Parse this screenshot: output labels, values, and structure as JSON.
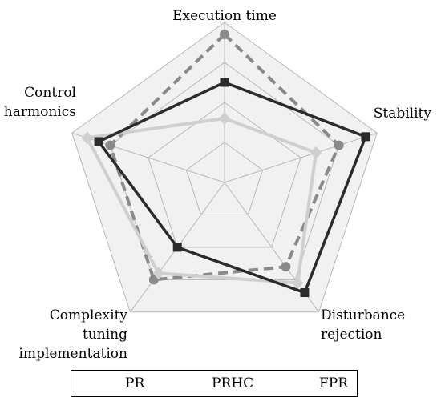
{
  "chart_data": {
    "type": "radar",
    "axes": [
      {
        "label": "Execution time"
      },
      {
        "label": "Stability"
      },
      {
        "label": "Disturbance rejection"
      },
      {
        "label": "Complexity tuning implementation"
      },
      {
        "label": "Control harmonics"
      }
    ],
    "axis_label_lines": [
      [
        "Execution time"
      ],
      [
        "Stability"
      ],
      [
        "Disturbance",
        "rejection"
      ],
      [
        "Complexity",
        "tuning",
        "implementation"
      ],
      [
        "Control",
        "harmonics"
      ]
    ],
    "rlim": [
      0,
      4
    ],
    "rings": 4,
    "grid": true,
    "legend_position": "bottom",
    "series": [
      {
        "name": "PR",
        "values": [
          3.7,
          3.0,
          2.6,
          3.0,
          3.0
        ],
        "color": "#8a8a8a",
        "style": "dashed",
        "marker": "circle"
      },
      {
        "name": "PRHC",
        "values": [
          1.6,
          2.4,
          3.1,
          2.8,
          3.6
        ],
        "color": "#cfcfcf",
        "style": "solid",
        "marker": "diamond"
      },
      {
        "name": "FPR",
        "values": [
          2.5,
          3.7,
          3.4,
          2.0,
          3.3
        ],
        "color": "#2b2b2b",
        "style": "solid",
        "marker": "square"
      }
    ]
  }
}
